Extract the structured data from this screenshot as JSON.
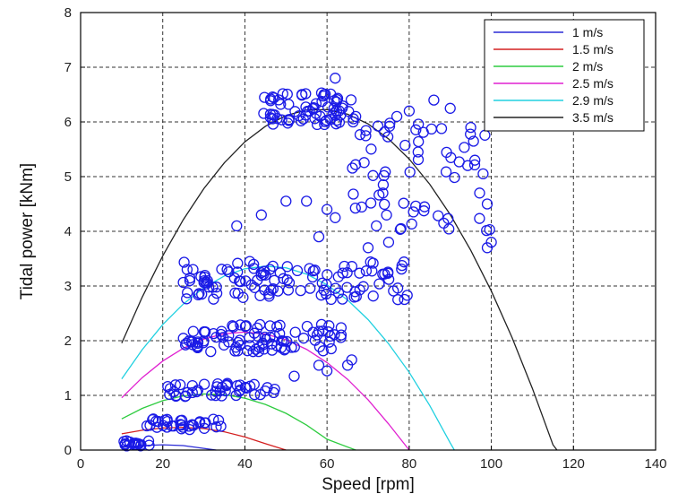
{
  "chart_data": {
    "type": "line",
    "xlabel": "Speed [rpm]",
    "ylabel": "Tidal power [kNm]",
    "xlim": [
      0,
      140
    ],
    "ylim": [
      0,
      8
    ],
    "xticks": [
      "0",
      "20",
      "40",
      "60",
      "80",
      "100",
      "120",
      "140"
    ],
    "yticks": [
      "0",
      "1",
      "2",
      "3",
      "4",
      "5",
      "6",
      "7",
      "8"
    ],
    "grid": true,
    "legend_position": "top-right",
    "series": [
      {
        "name": "1 m/s",
        "color": "#2b2bd6",
        "points": [
          [
            10,
            0.05
          ],
          [
            15,
            0.082
          ],
          [
            20,
            0.097
          ],
          [
            25,
            0.082
          ],
          [
            30,
            0.031
          ],
          [
            33,
            0.0
          ]
        ]
      },
      {
        "name": "1.5 m/s",
        "color": "#d42020",
        "points": [
          [
            10,
            0.296
          ],
          [
            15,
            0.362
          ],
          [
            20,
            0.404
          ],
          [
            25,
            0.416
          ],
          [
            30,
            0.394
          ],
          [
            35,
            0.335
          ],
          [
            40,
            0.239
          ],
          [
            45,
            0.116
          ],
          [
            50,
            0.0
          ]
        ]
      },
      {
        "name": "2 m/s",
        "color": "#2ecc40",
        "points": [
          [
            10,
            0.57
          ],
          [
            15,
            0.763
          ],
          [
            20,
            0.903
          ],
          [
            25,
            0.99
          ],
          [
            30,
            1.027
          ],
          [
            35,
            1.013
          ],
          [
            40,
            0.949
          ],
          [
            45,
            0.835
          ],
          [
            50,
            0.672
          ],
          [
            55,
            0.458
          ],
          [
            60,
            0.198
          ],
          [
            67,
            0.0
          ]
        ]
      },
      {
        "name": "2.5 m/s",
        "color": "#e020d0",
        "points": [
          [
            10,
            0.955
          ],
          [
            15,
            1.324
          ],
          [
            20,
            1.628
          ],
          [
            25,
            1.863
          ],
          [
            30,
            2.03
          ],
          [
            35,
            2.128
          ],
          [
            40,
            2.158
          ],
          [
            45,
            2.122
          ],
          [
            50,
            2.016
          ],
          [
            55,
            1.842
          ],
          [
            60,
            1.6
          ],
          [
            65,
            1.294
          ],
          [
            70,
            0.92
          ],
          [
            75,
            0.477
          ],
          [
            80,
            0.0
          ]
        ]
      },
      {
        "name": "2.9 m/s",
        "color": "#20d0e0",
        "points": [
          [
            10,
            1.302
          ],
          [
            15,
            1.836
          ],
          [
            20,
            2.293
          ],
          [
            25,
            2.669
          ],
          [
            30,
            2.969
          ],
          [
            35,
            3.183
          ],
          [
            40,
            3.315
          ],
          [
            45,
            3.364
          ],
          [
            50,
            3.332
          ],
          [
            55,
            3.218
          ],
          [
            60,
            3.022
          ],
          [
            65,
            2.744
          ],
          [
            70,
            2.386
          ],
          [
            75,
            1.943
          ],
          [
            80,
            1.421
          ],
          [
            85,
            0.815
          ],
          [
            90,
            0.129
          ],
          [
            91,
            0.0
          ]
        ]
      },
      {
        "name": "3.5 m/s",
        "color": "#222222",
        "points": [
          [
            10,
            1.955
          ],
          [
            15,
            2.797
          ],
          [
            20,
            3.551
          ],
          [
            25,
            4.212
          ],
          [
            30,
            4.78
          ],
          [
            35,
            5.252
          ],
          [
            40,
            5.636
          ],
          [
            45,
            5.921
          ],
          [
            50,
            6.117
          ],
          [
            55,
            6.219
          ],
          [
            60,
            6.225
          ],
          [
            65,
            6.141
          ],
          [
            70,
            5.964
          ],
          [
            75,
            5.689
          ],
          [
            80,
            5.322
          ],
          [
            85,
            4.861
          ],
          [
            90,
            4.305
          ],
          [
            95,
            3.653
          ],
          [
            100,
            2.907
          ],
          [
            105,
            2.065
          ],
          [
            110,
            1.128
          ],
          [
            115,
            0.097
          ],
          [
            116,
            0.0
          ]
        ]
      }
    ],
    "scatter": {
      "marker": "circle-open",
      "color": "#1a1ae6",
      "clusters": [
        {
          "x_range": [
            10,
            17
          ],
          "y_center": 0.12,
          "y_spread": 0.05,
          "count": 18
        },
        {
          "x_range": [
            16,
            35
          ],
          "y_center": 0.47,
          "y_spread": 0.1,
          "count": 34
        },
        {
          "x_range": [
            21,
            48
          ],
          "y_center": 1.1,
          "y_spread": 0.12,
          "count": 42
        },
        {
          "x_range": [
            25,
            65
          ],
          "y_center": 2.05,
          "y_spread": 0.25,
          "count": 90
        },
        {
          "x_range": [
            25,
            80
          ],
          "y_center": 3.1,
          "y_spread": 0.35,
          "count": 110
        },
        {
          "x_range": [
            44,
            67
          ],
          "y_center": 6.25,
          "y_spread": 0.3,
          "count": 70
        },
        {
          "x_range": [
            66,
            100
          ],
          "y_center": 5.0,
          "y_spread": 1.0,
          "count": 60
        }
      ],
      "extras": [
        [
          45,
          3.2
        ],
        [
          50,
          4.55
        ],
        [
          55,
          4.55
        ],
        [
          60,
          4.4
        ],
        [
          62,
          4.25
        ],
        [
          58,
          3.9
        ],
        [
          70,
          3.7
        ],
        [
          72,
          4.1
        ],
        [
          78,
          4.05
        ],
        [
          66,
          1.65
        ],
        [
          65,
          1.55
        ],
        [
          60,
          1.45
        ],
        [
          58,
          1.55
        ],
        [
          52,
          1.35
        ],
        [
          42,
          1.8
        ],
        [
          47,
          1.05
        ],
        [
          38,
          4.1
        ],
        [
          44,
          4.3
        ],
        [
          75,
          3.8
        ],
        [
          90,
          6.25
        ],
        [
          86,
          6.4
        ],
        [
          95,
          5.9
        ],
        [
          96,
          5.3
        ],
        [
          98,
          5.05
        ],
        [
          99,
          4.5
        ],
        [
          100,
          3.8
        ],
        [
          99,
          3.7
        ],
        [
          80,
          6.2
        ],
        [
          77,
          6.1
        ],
        [
          67,
          6.1
        ],
        [
          62,
          6.8
        ]
      ]
    }
  },
  "legend_entries": [
    {
      "label": "1 m/s",
      "color": "#2b2bd6"
    },
    {
      "label": "1.5 m/s",
      "color": "#d42020"
    },
    {
      "label": "2 m/s",
      "color": "#2ecc40"
    },
    {
      "label": "2.5 m/s",
      "color": "#e020d0"
    },
    {
      "label": "2.9 m/s",
      "color": "#20d0e0"
    },
    {
      "label": "3.5 m/s",
      "color": "#222222"
    }
  ]
}
